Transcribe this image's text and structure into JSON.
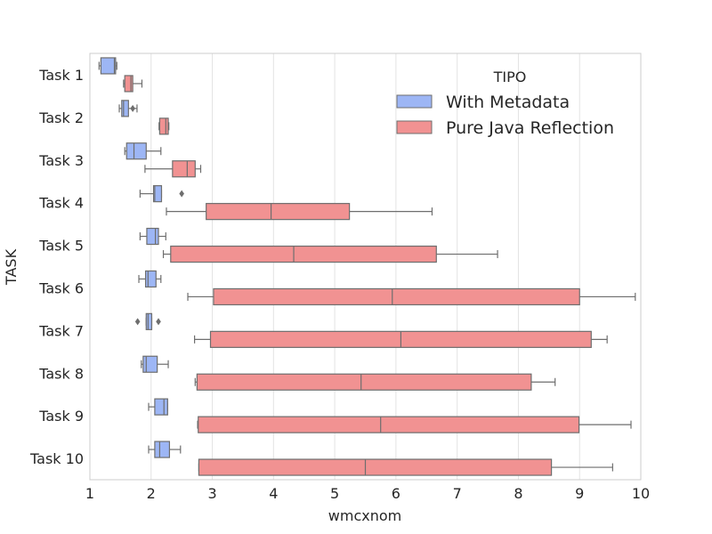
{
  "chart_data": {
    "type": "boxplot",
    "orientation": "horizontal",
    "title": "",
    "xlabel": "wmcxnom",
    "ylabel": "TASK",
    "xlim": [
      1,
      10
    ],
    "xticks": [
      1,
      2,
      3,
      4,
      5,
      6,
      7,
      8,
      9,
      10
    ],
    "grid": true,
    "legend": {
      "title": "TIPO",
      "placement": "top-right",
      "entries": [
        "With Metadata",
        "Pure Java Reflection"
      ]
    },
    "categories": [
      "Task 1",
      "Task 2",
      "Task 3",
      "Task 4",
      "Task 5",
      "Task 6",
      "Task 7",
      "Task 8",
      "Task 9",
      "Task 10"
    ],
    "series": [
      {
        "name": "With Metadata",
        "color": "#9db6f5",
        "boxes": [
          {
            "whislo": 1.15,
            "q1": 1.18,
            "med": 1.4,
            "q3": 1.42,
            "whishi": 1.44,
            "fliers": []
          },
          {
            "whislo": 1.48,
            "q1": 1.52,
            "med": 1.55,
            "q3": 1.63,
            "whishi": 1.77,
            "fliers": [
              1.7
            ]
          },
          {
            "whislo": 1.57,
            "q1": 1.6,
            "med": 1.72,
            "q3": 1.92,
            "whishi": 2.16,
            "fliers": []
          },
          {
            "whislo": 1.82,
            "q1": 2.04,
            "med": 2.06,
            "q3": 2.17,
            "whishi": 2.17,
            "fliers": [
              2.5
            ]
          },
          {
            "whislo": 1.82,
            "q1": 1.93,
            "med": 2.07,
            "q3": 2.12,
            "whishi": 2.24,
            "fliers": []
          },
          {
            "whislo": 1.8,
            "q1": 1.91,
            "med": 1.95,
            "q3": 2.08,
            "whishi": 2.16,
            "fliers": []
          },
          {
            "whislo": 1.92,
            "q1": 1.92,
            "med": 1.95,
            "q3": 2.01,
            "whishi": 2.01,
            "fliers": [
              1.78,
              2.12
            ]
          },
          {
            "whislo": 1.84,
            "q1": 1.87,
            "med": 1.92,
            "q3": 2.1,
            "whishi": 2.28,
            "fliers": []
          },
          {
            "whislo": 1.96,
            "q1": 2.06,
            "med": 2.21,
            "q3": 2.27,
            "whishi": 2.27,
            "fliers": []
          },
          {
            "whislo": 1.96,
            "q1": 2.06,
            "med": 2.14,
            "q3": 2.3,
            "whishi": 2.48,
            "fliers": []
          }
        ]
      },
      {
        "name": "Pure Java Reflection",
        "color": "#f19292",
        "boxes": [
          {
            "whislo": 1.55,
            "q1": 1.57,
            "med": 1.67,
            "q3": 1.7,
            "whishi": 1.85,
            "fliers": []
          },
          {
            "whislo": 2.13,
            "q1": 2.14,
            "med": 2.24,
            "q3": 2.28,
            "whishi": 2.29,
            "fliers": []
          },
          {
            "whislo": 1.9,
            "q1": 2.35,
            "med": 2.59,
            "q3": 2.72,
            "whishi": 2.81,
            "fliers": []
          },
          {
            "whislo": 2.25,
            "q1": 2.9,
            "med": 3.96,
            "q3": 5.24,
            "whishi": 6.59,
            "fliers": []
          },
          {
            "whislo": 2.2,
            "q1": 2.32,
            "med": 4.33,
            "q3": 6.66,
            "whishi": 7.66,
            "fliers": []
          },
          {
            "whislo": 2.6,
            "q1": 3.02,
            "med": 5.94,
            "q3": 9.0,
            "whishi": 9.91,
            "fliers": []
          },
          {
            "whislo": 2.71,
            "q1": 2.97,
            "med": 6.08,
            "q3": 9.19,
            "whishi": 9.45,
            "fliers": []
          },
          {
            "whislo": 2.72,
            "q1": 2.75,
            "med": 5.43,
            "q3": 8.21,
            "whishi": 8.6,
            "fliers": []
          },
          {
            "whislo": 2.76,
            "q1": 2.77,
            "med": 5.75,
            "q3": 8.99,
            "whishi": 9.84,
            "fliers": []
          },
          {
            "whislo": 2.78,
            "q1": 2.78,
            "med": 5.5,
            "q3": 8.54,
            "whishi": 9.54,
            "fliers": []
          }
        ]
      }
    ]
  }
}
